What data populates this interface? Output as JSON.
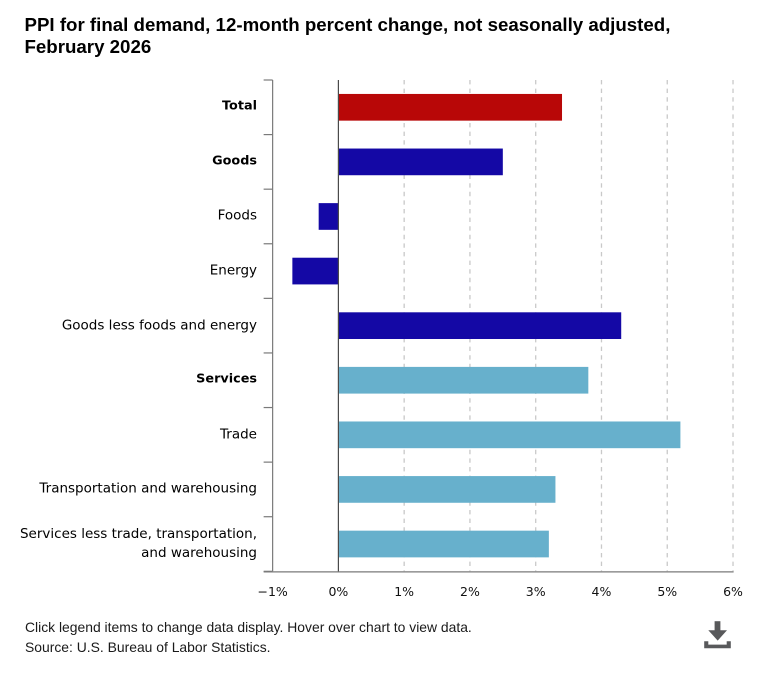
{
  "title": {
    "line1": "PPI for final demand, 12-month percent change, not seasonally adjusted,",
    "line2": "February 2026"
  },
  "chart_data": {
    "type": "bar",
    "orientation": "horizontal",
    "title": "PPI for final demand, 12-month percent change, not seasonally adjusted, February 2026",
    "categories": [
      "Total",
      "Goods",
      "Foods",
      "Energy",
      "Goods less foods and energy",
      "Services",
      "Trade",
      "Transportation and warehousing",
      "Services less trade, transportation, and warehousing"
    ],
    "category_label_lines": [
      [
        "Total"
      ],
      [
        "Goods"
      ],
      [
        "Foods"
      ],
      [
        "Energy"
      ],
      [
        "Goods less foods and energy"
      ],
      [
        "Services"
      ],
      [
        "Trade"
      ],
      [
        "Transportation and warehousing"
      ],
      [
        "Services less trade, transportation,",
        "and warehousing"
      ]
    ],
    "bold_flags": [
      true,
      true,
      false,
      false,
      false,
      true,
      false,
      false,
      false
    ],
    "values": [
      3.4,
      2.5,
      -0.3,
      -0.7,
      4.3,
      3.8,
      5.2,
      3.3,
      3.2
    ],
    "unit": "percent",
    "xlim": [
      -1,
      6
    ],
    "x_ticks": [
      -1,
      0,
      1,
      2,
      3,
      4,
      5,
      6
    ],
    "x_tick_labels": [
      "−1%",
      "0%",
      "1%",
      "2%",
      "3%",
      "4%",
      "5%",
      "6%"
    ],
    "grid": "vertical-dashed",
    "legend": "none",
    "bar_colors": [
      "#b80707",
      "#1408a5",
      "#1408a5",
      "#1408a5",
      "#1408a5",
      "#67b0cc",
      "#67b0cc",
      "#67b0cc",
      "#67b0cc"
    ],
    "color_legend": {
      "total": "#b80707",
      "goods": "#1408a5",
      "services": "#67b0cc"
    }
  },
  "footer": {
    "hint": "Click legend items to change data display. Hover over chart to view data.",
    "source": "Source: U.S. Bureau of Labor Statistics."
  },
  "icons": {
    "download": "download-icon"
  },
  "theme": {
    "background": "#ffffff",
    "grid_color": "#c9c9c9",
    "axis_color": "#7a7a7a",
    "zero_line_color": "#4a4a4a",
    "icon_color": "#58595b"
  }
}
